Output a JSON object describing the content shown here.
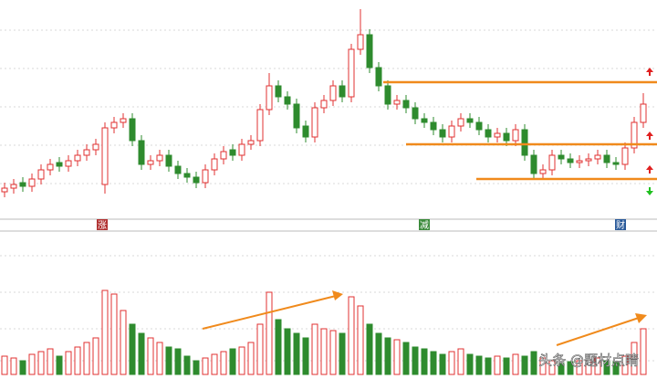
{
  "chart_data": {
    "type": "candlestick",
    "open": [
      10,
      12,
      15,
      13,
      17,
      22,
      26,
      24,
      27,
      30,
      33,
      14,
      45,
      48,
      50,
      38,
      25,
      27,
      30,
      24,
      20,
      18,
      15,
      22,
      28,
      33,
      30,
      36,
      38,
      55,
      68,
      62,
      58,
      46,
      40,
      56,
      60,
      68,
      62,
      88,
      96,
      78,
      68,
      58,
      60,
      56,
      50,
      48,
      44,
      40,
      46,
      50,
      48,
      44,
      40,
      42,
      38,
      44,
      30,
      20,
      22,
      30,
      28,
      26,
      27,
      28,
      30,
      26,
      25,
      34,
      48
    ],
    "high": [
      15,
      17,
      18,
      20,
      25,
      28,
      29,
      30,
      33,
      36,
      39,
      48,
      51,
      53,
      53,
      41,
      30,
      33,
      33,
      27,
      23,
      21,
      25,
      31,
      35,
      36,
      39,
      41,
      58,
      75,
      71,
      65,
      61,
      49,
      59,
      63,
      71,
      71,
      91,
      110,
      99,
      81,
      71,
      63,
      63,
      59,
      53,
      51,
      47,
      49,
      53,
      53,
      51,
      47,
      45,
      45,
      47,
      47,
      33,
      25,
      33,
      33,
      31,
      30,
      31,
      33,
      33,
      29,
      37,
      51,
      64
    ],
    "low": [
      7,
      9,
      10,
      10,
      14,
      19,
      21,
      21,
      24,
      27,
      30,
      9,
      42,
      45,
      35,
      22,
      22,
      24,
      21,
      17,
      15,
      12,
      12,
      19,
      25,
      27,
      27,
      33,
      35,
      52,
      59,
      55,
      42,
      37,
      37,
      53,
      57,
      59,
      59,
      85,
      75,
      65,
      55,
      55,
      53,
      47,
      45,
      41,
      37,
      37,
      43,
      45,
      41,
      37,
      37,
      35,
      35,
      27,
      17,
      17,
      19,
      25,
      23,
      23,
      24,
      25,
      23,
      22,
      22,
      31,
      45
    ],
    "close": [
      12,
      14,
      13,
      17,
      22,
      25,
      24,
      27,
      30,
      33,
      36,
      45,
      48,
      50,
      38,
      25,
      27,
      30,
      24,
      20,
      18,
      15,
      22,
      28,
      32,
      30,
      36,
      38,
      55,
      68,
      62,
      58,
      45,
      40,
      56,
      60,
      68,
      62,
      88,
      96,
      78,
      68,
      58,
      60,
      56,
      50,
      48,
      44,
      40,
      46,
      50,
      48,
      44,
      40,
      42,
      38,
      44,
      30,
      20,
      22,
      30,
      28,
      26,
      27,
      28,
      30,
      26,
      25,
      34,
      48,
      58
    ],
    "volume": [
      20,
      18,
      15,
      22,
      25,
      28,
      20,
      25,
      30,
      35,
      40,
      92,
      88,
      70,
      55,
      45,
      40,
      35,
      30,
      28,
      20,
      15,
      18,
      22,
      25,
      28,
      30,
      35,
      55,
      90,
      60,
      50,
      45,
      40,
      55,
      50,
      48,
      45,
      85,
      75,
      55,
      45,
      40,
      38,
      35,
      30,
      28,
      25,
      22,
      25,
      28,
      22,
      20,
      18,
      20,
      18,
      22,
      20,
      25,
      18,
      15,
      12,
      14,
      15,
      16,
      18,
      15,
      14,
      20,
      35,
      50
    ],
    "ylim": [
      0,
      115
    ],
    "vlim": [
      0,
      100
    ],
    "up_color": "#e03030",
    "down_color": "#2e8b2e",
    "markers": [
      "涨",
      "减",
      "财"
    ],
    "watermark": "头条 @题材点睛"
  }
}
